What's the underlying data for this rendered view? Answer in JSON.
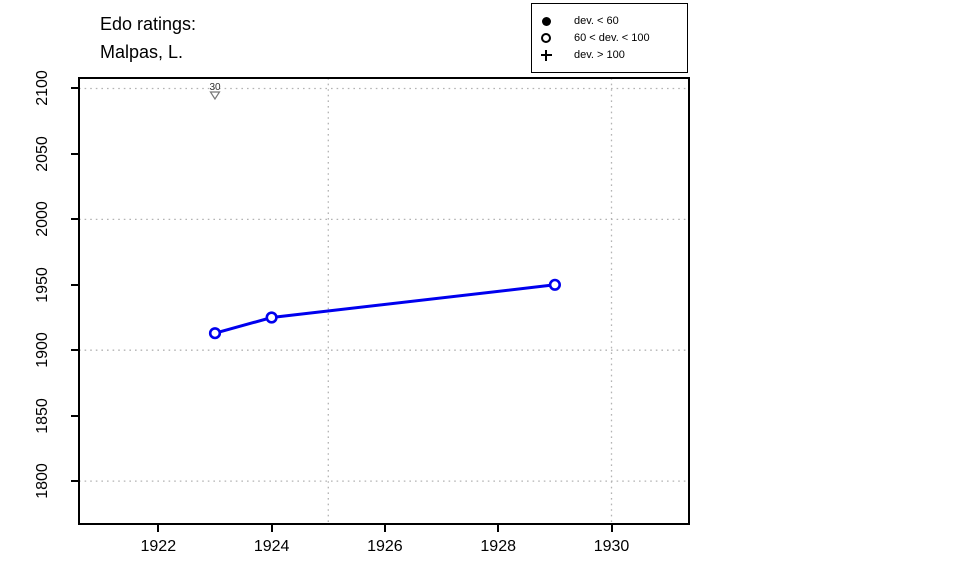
{
  "title": {
    "line1": "Edo ratings:",
    "line2": "Malpas, L."
  },
  "legend": {
    "position": "top-right",
    "items": [
      {
        "symbol": "filled-circle",
        "label": "dev. < 60"
      },
      {
        "symbol": "open-circle",
        "label": "60 < dev. < 100"
      },
      {
        "symbol": "plus",
        "label": "dev. > 100"
      }
    ]
  },
  "colors": {
    "line": "#0000ee",
    "point_fill": "#ffffff",
    "grid": "#b3b3b3",
    "axis": "#000000",
    "annotation_text": "#333333",
    "annotation_triangle": "#777777"
  },
  "chart_data": {
    "type": "line",
    "title": "Edo ratings: Malpas, L.",
    "series": [
      {
        "name": "Edo rating (60 < dev. < 100)",
        "x": [
          1923,
          1924,
          1929
        ],
        "y": [
          1913,
          1925,
          1950
        ],
        "point_style": "open-circle"
      }
    ],
    "x": [
      1923,
      1924,
      1929
    ],
    "y": [
      1913,
      1925,
      1950
    ],
    "xlabel": "",
    "ylabel": "",
    "xlim": [
      1920.6,
      1931.35
    ],
    "ylim": [
      1768,
      2108
    ],
    "xticks": [
      1922,
      1924,
      1926,
      1928,
      1930
    ],
    "yticks": [
      1800,
      1850,
      1900,
      1950,
      2000,
      2050,
      2100
    ],
    "x_gridlines": [
      1925,
      1930
    ],
    "y_gridlines": [
      1800,
      1900,
      2000,
      2100
    ],
    "grid_style": "dotted",
    "legend_position": "top-right",
    "annotations": [
      {
        "x": 1923,
        "label": "30",
        "symbol": "triangle-down",
        "position": "top"
      }
    ]
  }
}
